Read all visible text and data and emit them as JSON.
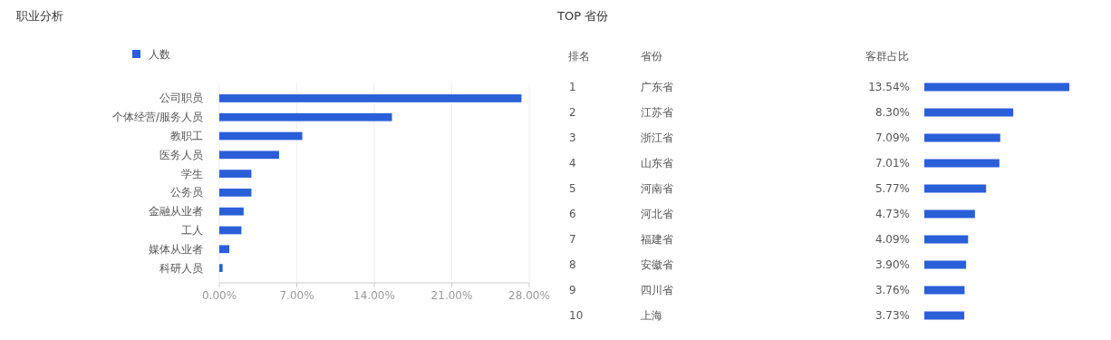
{
  "chart_data": [
    {
      "type": "bar",
      "orientation": "horizontal",
      "title": "职业分析",
      "legend": "top left",
      "grid": "x",
      "categories": [
        "公司职员",
        "个体经营/服务人员",
        "教职工",
        "医务人员",
        "学生",
        "公务员",
        "金融从业者",
        "工人",
        "媒体从业者",
        "科研人员"
      ],
      "series": [
        {
          "name": "人数",
          "color": "#2a5fd8",
          "values": [
            27.3,
            15.6,
            7.5,
            5.4,
            2.9,
            2.9,
            2.2,
            2.0,
            0.9,
            0.3
          ]
        }
      ],
      "xlim": [
        0,
        28
      ],
      "xticks": [
        {
          "value": 0,
          "label": "0.00%"
        },
        {
          "value": 7,
          "label": "7.00%"
        },
        {
          "value": 14,
          "label": "14.00%"
        },
        {
          "value": 21,
          "label": "21.00%"
        },
        {
          "value": 28,
          "label": "28.00%"
        }
      ]
    },
    {
      "type": "bar",
      "orientation": "horizontal",
      "title": "TOP 省份",
      "tick_labels": "y",
      "ylabel": "省份",
      "xlabel": "客群占比",
      "categories": [
        "广东省",
        "江苏省",
        "浙江省",
        "山东省",
        "河南省",
        "河北省",
        "福建省",
        "安徽省",
        "四川省",
        "上海"
      ],
      "series": [
        {
          "color": "#2a5fd8",
          "values": [
            13.54,
            8.3,
            7.09,
            7.01,
            5.77,
            4.73,
            4.09,
            3.9,
            3.76,
            3.73
          ],
          "value_labels": [
            "13.54%",
            "8.30%",
            "7.09%",
            "7.01%",
            "5.77%",
            "4.73%",
            "4.09%",
            "3.90%",
            "3.76%",
            "3.73%"
          ]
        }
      ],
      "annotations": [
        "排名",
        "1",
        "2",
        "3",
        "4",
        "5",
        "6",
        "7",
        "8",
        "9",
        "10"
      ]
    }
  ]
}
